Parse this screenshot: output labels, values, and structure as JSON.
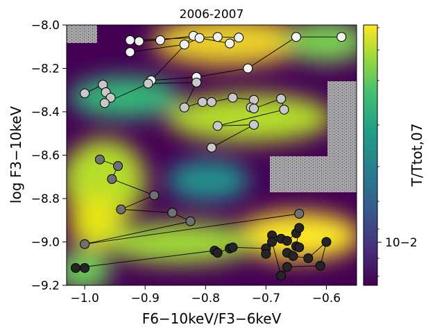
{
  "chart_data": {
    "type": "scatter",
    "title": "2006-2007",
    "xlabel": "F6−10keV/F3−6keV",
    "ylabel": "log F3−10keV",
    "colorbar_label": "T/Ttot,07",
    "colorbar_tick_label": "10−2",
    "xlim": [
      -1.03,
      -0.55
    ],
    "ylim": [
      -9.2,
      -8.0
    ],
    "x_ticks": [
      -1.0,
      -0.9,
      -0.8,
      -0.7,
      -0.6
    ],
    "x_tick_labels": [
      "−1.0",
      "−0.9",
      "−0.8",
      "−0.7",
      "−0.6"
    ],
    "y_ticks": [
      -8.0,
      -8.2,
      -8.4,
      -8.6,
      -8.8,
      -9.0,
      -9.2
    ],
    "y_tick_labels": [
      "−8.0",
      "−8.2",
      "−8.4",
      "−8.6",
      "−8.8",
      "−9.0",
      "−9.2"
    ],
    "colormap": "viridis",
    "colors": {
      "background_low": "#440154",
      "masked": "#a5a5a5",
      "marker_edge": "#000000"
    },
    "series": [
      {
        "shade": "#f2f2f2",
        "points": [
          [
            -0.575,
            -8.055
          ],
          [
            -0.65,
            -8.055
          ],
          [
            -0.73,
            -8.2
          ],
          [
            -0.815,
            -8.24
          ],
          [
            -0.89,
            -8.255
          ],
          [
            -0.82,
            -8.05
          ],
          [
            -0.875,
            -8.07
          ],
          [
            -0.91,
            -8.075
          ],
          [
            -0.925,
            -8.07
          ],
          [
            -0.78,
            -8.055
          ],
          [
            -0.745,
            -8.058
          ],
          [
            -0.76,
            -8.085
          ],
          [
            -0.81,
            -8.06
          ],
          [
            -0.835,
            -8.09
          ],
          [
            -0.925,
            -8.125
          ]
        ]
      },
      {
        "shade": "#c8c8c8",
        "points": [
          [
            -1.0,
            -8.315
          ],
          [
            -0.97,
            -8.275
          ],
          [
            -0.965,
            -8.31
          ],
          [
            -0.957,
            -8.335
          ],
          [
            -0.967,
            -8.36
          ],
          [
            -0.895,
            -8.27
          ],
          [
            -0.815,
            -8.265
          ],
          [
            -0.835,
            -8.38
          ],
          [
            -0.805,
            -8.355
          ],
          [
            -0.79,
            -8.355
          ],
          [
            -0.755,
            -8.335
          ],
          [
            -0.72,
            -8.345
          ],
          [
            -0.725,
            -8.38
          ],
          [
            -0.72,
            -8.385
          ],
          [
            -0.675,
            -8.34
          ],
          [
            -0.67,
            -8.39
          ],
          [
            -0.78,
            -8.465
          ],
          [
            -0.72,
            -8.46
          ],
          [
            -0.79,
            -8.565
          ]
        ]
      },
      {
        "shade": "#707070",
        "points": [
          [
            -0.975,
            -8.62
          ],
          [
            -0.945,
            -8.65
          ],
          [
            -0.955,
            -8.71
          ],
          [
            -0.885,
            -8.785
          ],
          [
            -0.94,
            -8.85
          ],
          [
            -0.855,
            -8.865
          ],
          [
            -0.825,
            -8.905
          ],
          [
            -1.0,
            -9.01
          ],
          [
            -0.645,
            -8.87
          ]
        ]
      },
      {
        "shade": "#252525",
        "points": [
          [
            -1.0,
            -9.12
          ],
          [
            -1.015,
            -9.12
          ],
          [
            -0.785,
            -9.04
          ],
          [
            -0.78,
            -9.05
          ],
          [
            -0.76,
            -9.03
          ],
          [
            -0.755,
            -9.025
          ],
          [
            -0.7,
            -9.03
          ],
          [
            -0.7,
            -9.055
          ],
          [
            -0.69,
            -8.97
          ],
          [
            -0.675,
            -8.985
          ],
          [
            -0.665,
            -8.995
          ],
          [
            -0.65,
            -8.96
          ],
          [
            -0.645,
            -8.935
          ],
          [
            -0.65,
            -9.02
          ],
          [
            -0.645,
            -9.025
          ],
          [
            -0.665,
            -9.05
          ],
          [
            -0.655,
            -9.065
          ],
          [
            -0.63,
            -9.075
          ],
          [
            -0.6,
            -9.0
          ],
          [
            -0.61,
            -9.11
          ],
          [
            -0.665,
            -9.115
          ],
          [
            -0.675,
            -9.155
          ],
          [
            -0.69,
            -9.0
          ]
        ]
      }
    ]
  }
}
